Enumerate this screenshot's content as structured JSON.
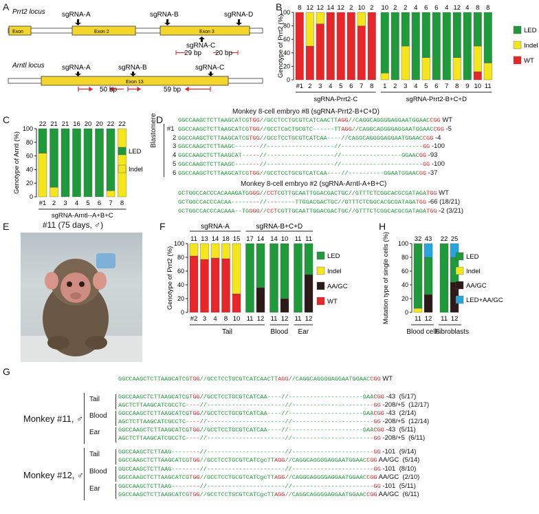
{
  "panels": {
    "A": {
      "letter": "A",
      "locus1": "Prrt2 locus",
      "locus1_labels": [
        "sgRNA-A",
        "sgRNA-B",
        "sgRNA-D",
        "sgRNA-C"
      ],
      "locus1_exons": [
        "Exon",
        "Exon 2",
        "Exon 3"
      ],
      "locus1_dist": [
        "29 bp",
        "20 bp"
      ],
      "locus2": "Arntl locus",
      "locus2_labels": [
        "sgRNA-A",
        "sgRNA-B",
        "sgRNA-C"
      ],
      "locus2_exons": [
        "Exon 13"
      ],
      "locus2_dist": [
        "50 bp",
        "59 bp"
      ]
    },
    "B": {
      "letter": "B"
    },
    "C": {
      "letter": "C"
    },
    "D": {
      "letter": "D",
      "title1": "Monkey 8-cell embryo #8 (sgRNA-Prrt2-B+C+D)",
      "blastomere_label": "Blastomere",
      "rows1": [
        {
          "idx": "",
          "g1": "GGCCAAGCTCTTAAGCATCG",
          "p1": "TGG",
          "g2": "//GCCTCCTGCGTCATCAACTT",
          "p2": "AGG",
          "g3": "//CAGGCAGGGGAGGAATGGAAC",
          "p3": "CGG",
          "note": "WT"
        },
        {
          "idx": "#1",
          "g1": "GGCCAAGCTCTTAAGCATCG",
          "p1": "TGG",
          "g2": "//GCCTCaCTGCGTC------TT",
          "p2": "AGG",
          "g3": "//CAGGCAGGGGAGGAATGGAAC",
          "p3": "CGG",
          "note": "-5"
        },
        {
          "idx": "2",
          "g1": "GGCCAAGCTCTTAAGCATCG",
          "p1": "TGG",
          "g2": "//GCCTCCTGCGTCATCAA----",
          "p2": "",
          "g3": "//CAGGCAGGGGAGGAATGGAAC",
          "p3": "CGG",
          "note": "-4"
        },
        {
          "idx": "3",
          "g1": "GGCCAAGCTCTTAAGC----",
          "p1": "---",
          "g2": "//-------------------",
          "p2": "",
          "g3": "//-----------------------",
          "p3": "GG",
          "note": "-100"
        },
        {
          "idx": "4",
          "g1": "GGCCAAGCTCTTAAGCAT--",
          "p1": "---",
          "g2": "//-------------------",
          "p2": "",
          "g3": "//-----------------GGAAC",
          "p3": "GG",
          "note": "-93"
        },
        {
          "idx": "5",
          "g1": "GGCCAAGCTCTTAAGC----",
          "p1": "---",
          "g2": "//-------------------",
          "p2": "",
          "g3": "//-----------------------",
          "p3": "GG",
          "note": "-100"
        },
        {
          "idx": "6",
          "g1": "GGCCAAGCTCTTAAGCATCG",
          "p1": "TGG",
          "g2": "//GCCTCCTGCGTCATCAA----",
          "p2": "",
          "g3": "//----------GGAATGGAAC",
          "p3": "GG",
          "note": "-37"
        }
      ],
      "title2": "Monkey 8-cell embryo #2 (sgRNA-Arntl-A+B+C)",
      "rows2": [
        {
          "g1": "GCTGGCCACCCACAAAGATG",
          "p1": "GGG",
          "g2": "//",
          "p2": "CCT",
          "g3": "CGTTGCAATTGGACGACTGC//GTTTCTCGGCACGCGATAGA",
          "p3": "TGG",
          "note": "WT"
        },
        {
          "g1": "GCTGGCCACCCACAA-----",
          "p1": "---",
          "g2": "//",
          "p2": "---",
          "g3": "-----TTGGACGACTGC//GTTTCTCGGCACGCGATAGA",
          "p3": "TGG",
          "note": "-66 (18/21)"
        },
        {
          "g1": "GCTGGCCACCCACAAA--TG",
          "p1": "GGG",
          "g2": "//",
          "p2": "CCT",
          "g3": "CGTTGCAATTGGACGACTGC//GTTTCTCGGCACGCGATAGA",
          "p3": "TGG",
          "note": "-2 (3/21)"
        }
      ]
    },
    "E": {
      "letter": "E",
      "caption": "#11 (75 days, ♂)"
    },
    "F": {
      "letter": "F",
      "group1": "sgRNA-A",
      "group2": "sgRNA-B+C+D",
      "tissues": [
        "Tail",
        "Blood",
        "Ear"
      ]
    },
    "H": {
      "letter": "H",
      "groups": [
        "Blood cells",
        "Fibroblasts"
      ]
    },
    "G": {
      "letter": "G",
      "wt": {
        "g1": "GGCCAAGCTCTTAAGCATCG",
        "p1": "TGG",
        "g2": "//GCCTCCTGCGTCATCAACTT",
        "p2": "AGG",
        "g3": "//CAGGCAGGGGAGGAATGGAAC",
        "p3": "CGG",
        "note": "WT"
      },
      "m11_label": "Monkey #11, ♂",
      "m11_tissues": [
        "Tail",
        "Blood",
        "Ear"
      ],
      "m11_rows": [
        {
          "g1": "GGCCAAGCTCTTAAGCATCG",
          "p1": "TGG",
          "g2": "//GCCTCCTGCGTCATCAA----//",
          "g3": "---------------------GAA",
          "p3": "CGG",
          "note": "-43  (5/17)"
        },
        {
          "g1": "AGCTCTTAAGCATCGCCTC-",
          "p1": "---",
          "g2": "//----------------------//",
          "g3": "-----------------------",
          "p3": "GG",
          "note": "-208/+5  (12/17)"
        },
        {
          "g1": "GGCCAAGCTCTTAAGCATCG",
          "p1": "TGG",
          "g2": "//GCCTCCTGCGTCATCAA----//",
          "g3": "---------------------GAA",
          "p3": "CGG",
          "note": "-43  (2/14)"
        },
        {
          "g1": "AGCTCTTAAGCATCGCCTC-",
          "p1": "---",
          "g2": "//----------------------//",
          "g3": "-----------------------",
          "p3": "GG",
          "note": "-208/+5  (12/14)"
        },
        {
          "g1": "GGCCAAGCTCTTAAGCATCG",
          "p1": "TGG",
          "g2": "//GCCTCCTGCGTCATCAA----//",
          "g3": "---------------------GAA",
          "p3": "CGG",
          "note": "-43  (5/11)"
        },
        {
          "g1": "AGCTCTTAAGCATCGCCTC-",
          "p1": "---",
          "g2": "//----------------------//",
          "g3": "-----------------------",
          "p3": "GG",
          "note": "-208/+5  (6/11)"
        }
      ],
      "m12_label": "Monkey #12, ♂",
      "m12_tissues": [
        "Tail",
        "Blood",
        "Ear"
      ],
      "m12_rows": [
        {
          "g1": "GGCCAAGCTCTTAAG-----",
          "p1": "---",
          "g2": "//----------------------//",
          "g3": "-----------------------",
          "p3": "GG",
          "note": "-101  (9/14)"
        },
        {
          "g1": "GGCCAAGCTCTTAAGCATCG",
          "p1": "TGG",
          "g2": "//GCCTCCTGCGTCATCgcTT",
          "p2": "AGG",
          "g3": "//CAGGCAGGGGAGGAATGGAAC",
          "p3": "CGG",
          "note": "AA/GC  (5/14)"
        },
        {
          "g1": "GGCCAAGCTCTTAAG-----",
          "p1": "---",
          "g2": "//----------------------//",
          "g3": "-----------------------",
          "p3": "GG",
          "note": "-101  (8/10)"
        },
        {
          "g1": "GGCCAAGCTCTTAAGCATCG",
          "p1": "TGG",
          "g2": "//GCCTCCTGCGTCATCgcTT",
          "p2": "AGG",
          "g3": "//CAGGCAGGGGAGGAATGGAAC",
          "p3": "CGG",
          "note": "AA/GC  (2/10)"
        },
        {
          "g1": "GGCCAAGCTCTTAAG-----",
          "p1": "---",
          "g2": "//----------------------//",
          "g3": "-----------------------",
          "p3": "GG",
          "note": "-101  (5/11)"
        },
        {
          "g1": "GGCCAAGCTCTTAAGCATCG",
          "p1": "TGG",
          "g2": "//GCCTCCTGCGTCATCgcTT",
          "p2": "AGG",
          "g3": "//CAGGCAGGGGAGGAATGGAAC",
          "p3": "CGG",
          "note": "AA/GC  (6/11)"
        }
      ]
    }
  },
  "colors": {
    "LED": "#1f9a3a",
    "Indel": "#f5e61c",
    "WT": "#e8262a",
    "AAGC": "#2b1a17",
    "LEDAAGC": "#26a6df",
    "seq": "#1f9a3a",
    "pam": "#e8262a",
    "exon": "#f3d52b"
  },
  "chart_data": [
    {
      "id": "B",
      "type": "bar",
      "stacked": true,
      "ylabel": "Genotype of Prrt2 (%)",
      "ylim": [
        0,
        100
      ],
      "yticks": [
        0,
        20,
        40,
        60,
        80,
        100
      ],
      "groups": [
        {
          "label": "sgRNA-Prrt2-C",
          "categories": [
            "#1",
            "2",
            "3",
            "4",
            "5",
            "6",
            "7",
            "8"
          ],
          "counts": [
            "8",
            "12",
            "12",
            "14",
            "12",
            "2",
            "10",
            "2"
          ]
        },
        {
          "label": "sgRNA-Prrt2-B+C+D",
          "categories": [
            "1",
            "2",
            "3",
            "4",
            "5",
            "6",
            "7",
            "8",
            "9",
            "10",
            "11"
          ],
          "counts": [
            "10",
            "2",
            "2",
            "4",
            "6",
            "6",
            "4",
            "12",
            "4",
            "8",
            "8"
          ]
        }
      ],
      "series": [
        {
          "name": "WT",
          "values": [
            100,
            50,
            83,
            100,
            100,
            100,
            80,
            100,
            0,
            0,
            0,
            0,
            0,
            0,
            0,
            0,
            0,
            12,
            0
          ]
        },
        {
          "name": "Indel",
          "values": [
            0,
            50,
            17,
            0,
            0,
            0,
            20,
            0,
            10,
            0,
            50,
            0,
            33,
            0,
            0,
            33,
            0,
            38,
            25
          ]
        },
        {
          "name": "LED",
          "values": [
            0,
            0,
            0,
            0,
            0,
            0,
            0,
            0,
            90,
            100,
            50,
            100,
            67,
            100,
            100,
            67,
            100,
            50,
            75
          ]
        }
      ],
      "legend": [
        "LED",
        "Indel",
        "WT"
      ]
    },
    {
      "id": "C",
      "type": "bar",
      "stacked": true,
      "ylabel": "Genotype of Arntl (%)",
      "ylim": [
        0,
        100
      ],
      "yticks": [
        0,
        20,
        40,
        60,
        80,
        100
      ],
      "groups": [
        {
          "label": "sgRNA-Arntl--A+B+C",
          "categories": [
            "#1",
            "2",
            "3",
            "4",
            "5",
            "6",
            "7",
            "8"
          ],
          "counts": [
            "22",
            "21",
            "21",
            "16",
            "20",
            "20",
            "22",
            "22"
          ]
        }
      ],
      "series": [
        {
          "name": "Indel",
          "values": [
            64,
            14,
            0,
            0,
            0,
            0,
            9,
            100
          ]
        },
        {
          "name": "LED",
          "values": [
            36,
            86,
            100,
            100,
            100,
            100,
            91,
            0
          ]
        }
      ],
      "legend": [
        "LED",
        "Indel"
      ]
    },
    {
      "id": "F",
      "type": "bar",
      "stacked": true,
      "ylabel": "Genotype of Prrt2 (%)",
      "ylim": [
        0,
        100
      ],
      "yticks": [
        0,
        20,
        40,
        60,
        80,
        100
      ],
      "categories": [
        "#2",
        "3",
        "4",
        "8",
        "10",
        "11",
        "12",
        "11",
        "12",
        "11",
        "12"
      ],
      "counts": [
        "11",
        "13",
        "14",
        "18",
        "15",
        "17",
        "14",
        "14",
        "10",
        "11",
        "11"
      ],
      "series": [
        {
          "name": "WT",
          "values": [
            82,
            77,
            79,
            78,
            27,
            0,
            0,
            0,
            0,
            0,
            0
          ]
        },
        {
          "name": "AA/GC",
          "values": [
            0,
            0,
            0,
            0,
            0,
            0,
            36,
            0,
            20,
            0,
            55
          ]
        },
        {
          "name": "Indel",
          "values": [
            18,
            23,
            21,
            22,
            73,
            0,
            0,
            0,
            0,
            0,
            0
          ]
        },
        {
          "name": "LED",
          "values": [
            0,
            0,
            0,
            0,
            0,
            100,
            64,
            100,
            80,
            100,
            45
          ]
        }
      ],
      "legend": [
        "LED",
        "Indel",
        "AA/GC",
        "WT"
      ]
    },
    {
      "id": "H",
      "type": "bar",
      "stacked": true,
      "ylabel": "Mutation type of single cells (%)",
      "ylim": [
        0,
        100
      ],
      "yticks": [
        0,
        20,
        40,
        60,
        80,
        100
      ],
      "categories": [
        "11",
        "12",
        "11",
        "12"
      ],
      "counts": [
        "32",
        "43",
        "22",
        "25"
      ],
      "series": [
        {
          "name": "Indel",
          "values": [
            6,
            0,
            0,
            0
          ]
        },
        {
          "name": "AA/GC",
          "values": [
            0,
            26,
            0,
            44
          ]
        },
        {
          "name": "LED",
          "values": [
            94,
            54,
            100,
            36
          ]
        },
        {
          "name": "LED+AA/GC",
          "values": [
            0,
            20,
            0,
            20
          ]
        }
      ],
      "legend": [
        "LED",
        "Indel",
        "AA/GC",
        "LED+AA/GC"
      ]
    }
  ]
}
